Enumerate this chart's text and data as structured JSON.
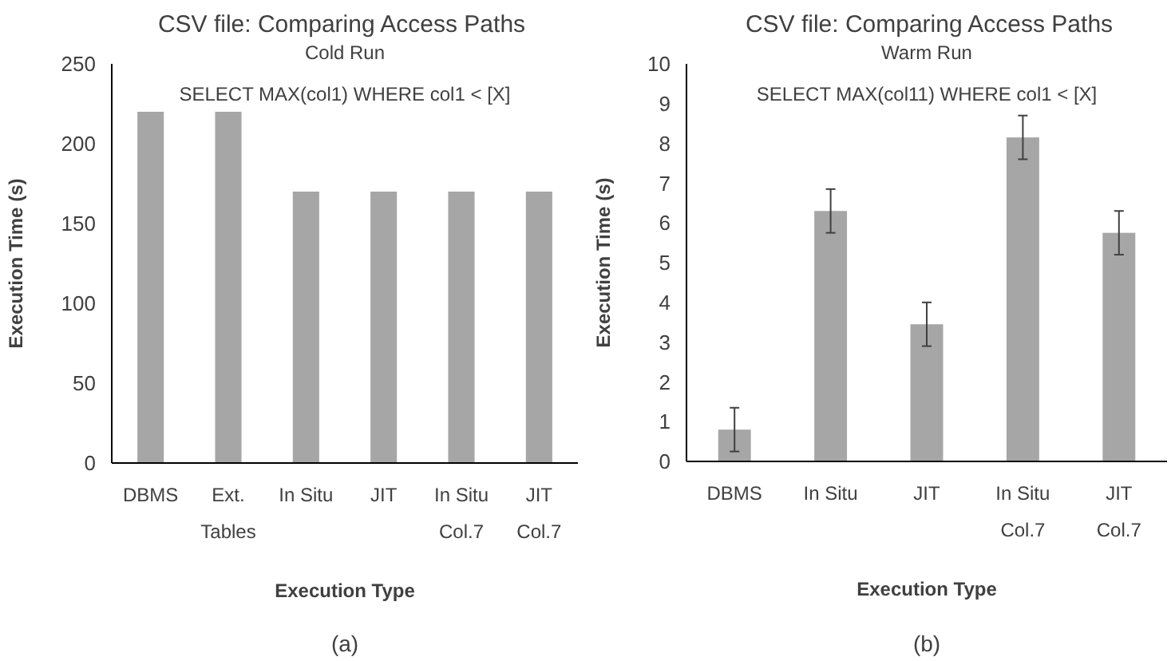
{
  "chart_data": [
    {
      "type": "bar",
      "title": "CSV file: Comparing Access Paths",
      "subtitle": "Cold Run",
      "annotations": [
        "SELECT MAX(col1) WHERE col1 < [X]",
        "(a)"
      ],
      "xlabel": "Execution Type",
      "ylabel": "Execution Time (s)",
      "categories": [
        "DBMS",
        "Ext.\nTables",
        "In Situ",
        "JIT",
        "In Situ\nCol.7",
        "JIT\nCol.7"
      ],
      "values": [
        220,
        220,
        170,
        170,
        170,
        170
      ],
      "color": "#a6a6a6",
      "ylim": [
        0,
        250
      ],
      "yticks": [
        0,
        50,
        100,
        150,
        200,
        250
      ]
    },
    {
      "type": "bar",
      "title": "CSV file: Comparing Access Paths",
      "subtitle": "Warm Run",
      "annotations": [
        "SELECT MAX(col11) WHERE col1 < [X]",
        "(b)"
      ],
      "xlabel": "Execution Type",
      "ylabel": "Execution Time (s)",
      "categories": [
        "DBMS",
        "In Situ",
        "JIT",
        "In Situ\nCol.7",
        "JIT\nCol.7"
      ],
      "values": [
        0.8,
        6.3,
        3.45,
        8.15,
        5.75
      ],
      "errors": [
        0.55,
        0.55,
        0.55,
        0.55,
        0.55
      ],
      "color": "#a6a6a6",
      "ylim": [
        0,
        10
      ],
      "yticks": [
        0,
        1,
        2,
        3,
        4,
        5,
        6,
        7,
        8,
        9,
        10
      ]
    }
  ]
}
